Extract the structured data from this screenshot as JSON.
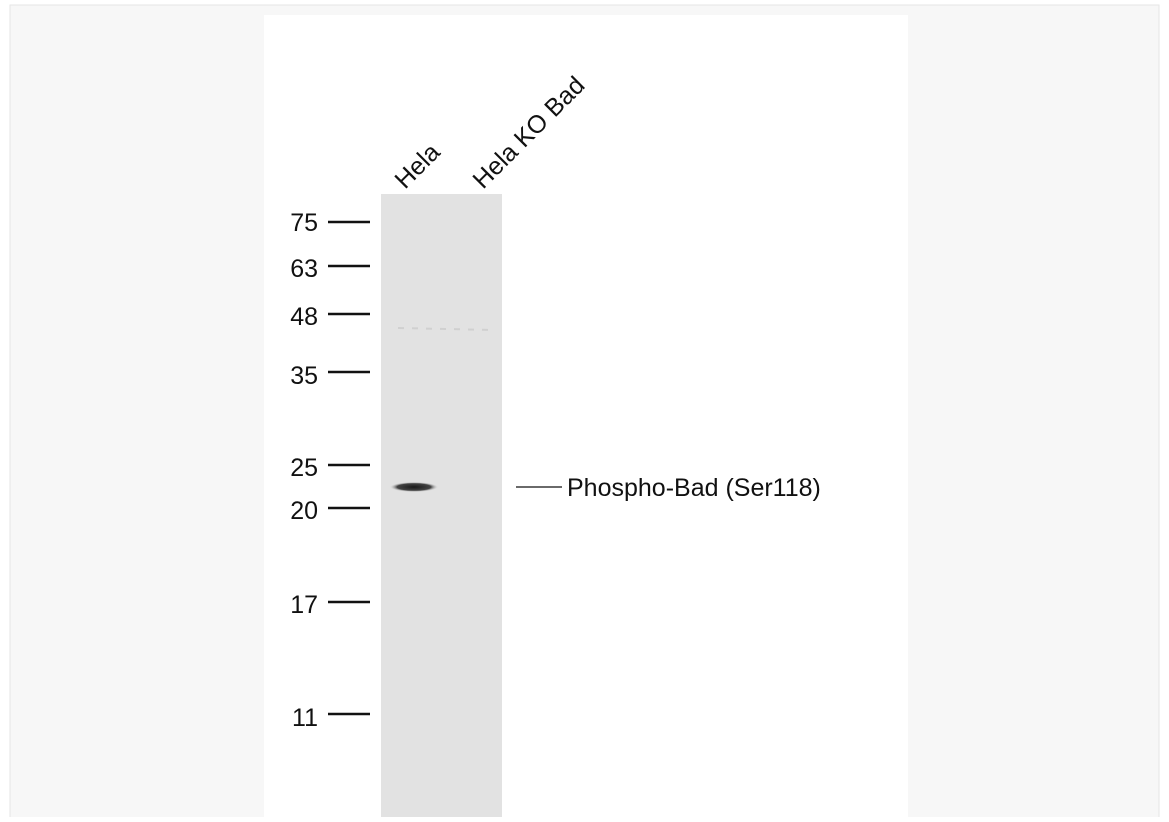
{
  "lanes": [
    "Hela",
    "Hela KO Bad"
  ],
  "markers": [
    75,
    63,
    48,
    35,
    25,
    20,
    17,
    11
  ],
  "band_label": "Phospho-Bad (Ser118)"
}
